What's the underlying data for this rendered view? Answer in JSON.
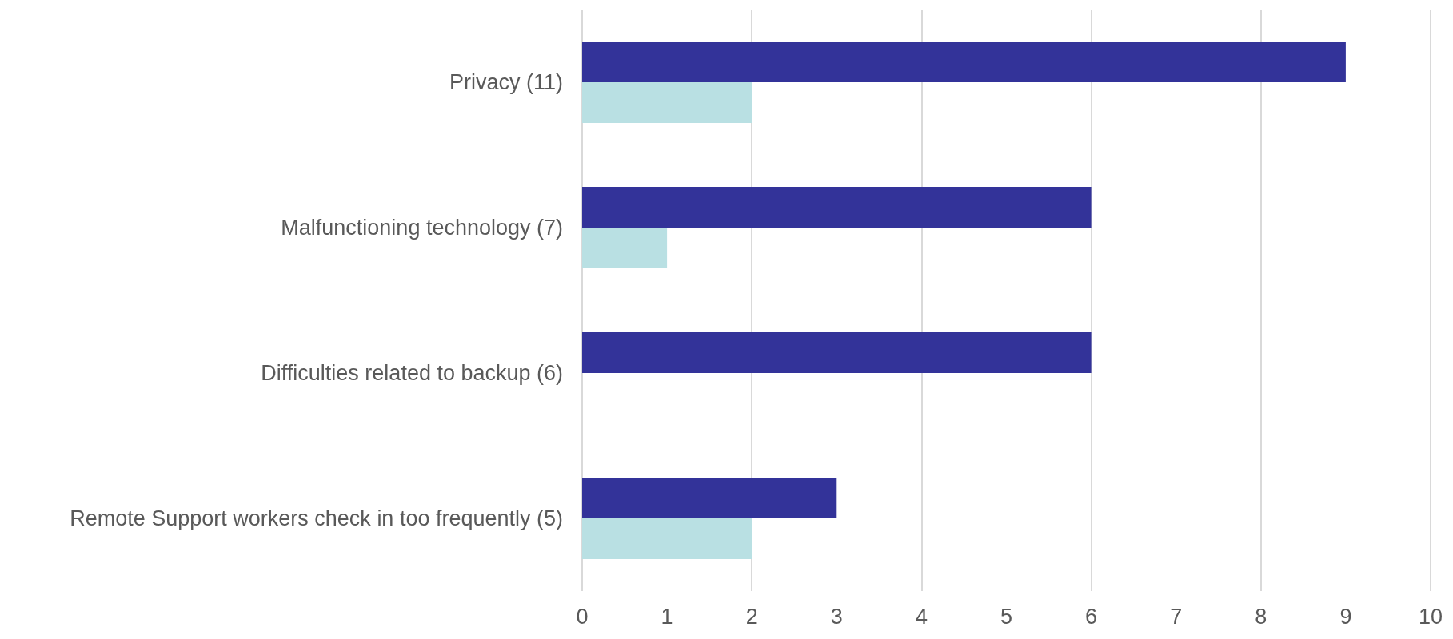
{
  "chart_data": {
    "type": "bar",
    "orientation": "horizontal",
    "categories": [
      "Privacy (11)",
      "Malfunctioning technology (7)",
      "Difficulties related to backup (6)",
      "Remote Support workers check in too frequently (5)"
    ],
    "series": [
      {
        "color": "#333399",
        "values": [
          9,
          6,
          6,
          3
        ]
      },
      {
        "color": "#b9e0e3",
        "values": [
          2,
          1,
          0,
          2
        ]
      }
    ],
    "xlim": [
      0,
      10
    ],
    "xticks": [
      0,
      1,
      2,
      3,
      4,
      5,
      6,
      7,
      8,
      9,
      10
    ],
    "grid": "x"
  }
}
